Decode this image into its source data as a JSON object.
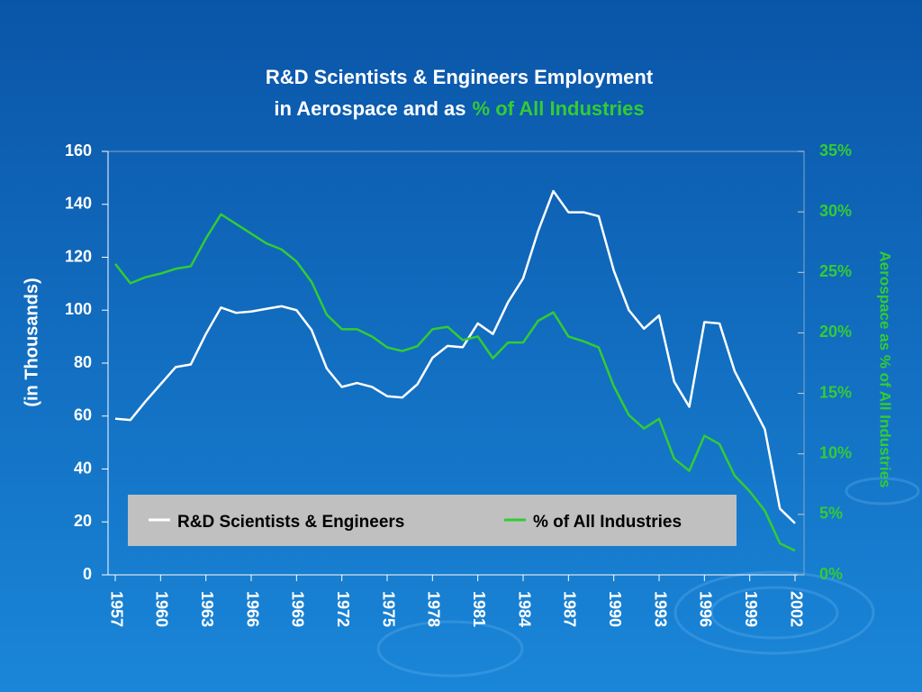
{
  "chart_data": {
    "type": "line",
    "title": "R&D Scientists & Engineers Employment",
    "title_line2": "in Aerospace and as",
    "title_highlight": "% of All Industries",
    "ylabel": "(in Thousands)",
    "y2label": "Aerospace as % of All Industries",
    "x": [
      1957,
      1958,
      1959,
      1960,
      1961,
      1962,
      1963,
      1964,
      1965,
      1966,
      1967,
      1968,
      1969,
      1970,
      1971,
      1972,
      1973,
      1974,
      1975,
      1976,
      1977,
      1978,
      1979,
      1980,
      1981,
      1982,
      1983,
      1984,
      1985,
      1986,
      1987,
      1988,
      1989,
      1990,
      1991,
      1992,
      1993,
      1994,
      1995,
      1996,
      1997,
      1998,
      1999,
      2000,
      2001,
      2002
    ],
    "xlim": [
      1957,
      2002
    ],
    "xticks": [
      1957,
      1960,
      1963,
      1966,
      1969,
      1972,
      1975,
      1978,
      1981,
      1984,
      1987,
      1990,
      1993,
      1996,
      1999,
      2002
    ],
    "ylim": [
      0,
      160
    ],
    "yticks": [
      0,
      20,
      40,
      60,
      80,
      100,
      120,
      140,
      160
    ],
    "y2lim": [
      0,
      35
    ],
    "y2ticks": [
      {
        "value": 0,
        "label": "0%"
      },
      {
        "value": 5,
        "label": "5%"
      },
      {
        "value": 10,
        "label": "10%"
      },
      {
        "value": 15,
        "label": "15%"
      },
      {
        "value": 20,
        "label": "20%"
      },
      {
        "value": 25,
        "label": "25%"
      },
      {
        "value": 30,
        "label": "30%"
      },
      {
        "value": 35,
        "label": "35%"
      }
    ],
    "series": [
      {
        "name": "R&D Scientists & Engineers",
        "color": "#ffffff",
        "values": [
          59,
          58.5,
          65.5,
          72,
          78.5,
          79.5,
          91,
          101,
          99,
          99.5,
          100.5,
          101.5,
          100,
          92.5,
          78,
          71,
          72.5,
          71,
          67.5,
          67,
          72,
          82,
          86.5,
          86,
          95,
          91,
          103,
          112,
          130,
          145,
          137,
          137,
          135.5,
          115,
          100,
          93,
          98,
          73,
          63.5,
          95.5,
          95,
          77,
          66,
          55,
          25,
          19.5
        ]
      },
      {
        "name": "% of All Industries",
        "color": "#33cc33",
        "axis": "y2",
        "values": [
          25.7,
          24.1,
          24.6,
          24.9,
          25.3,
          25.5,
          27.8,
          29.8,
          29.0,
          28.2,
          27.4,
          26.9,
          25.9,
          24.2,
          21.5,
          20.3,
          20.3,
          19.7,
          18.8,
          18.5,
          18.9,
          20.3,
          20.5,
          19.4,
          19.7,
          17.9,
          19.2,
          19.2,
          21.0,
          21.7,
          19.7,
          19.3,
          18.8,
          15.6,
          13.2,
          12.1,
          12.9,
          9.6,
          8.6,
          11.5,
          10.8,
          8.2,
          6.9,
          5.3,
          2.6,
          2.0
        ]
      }
    ]
  }
}
